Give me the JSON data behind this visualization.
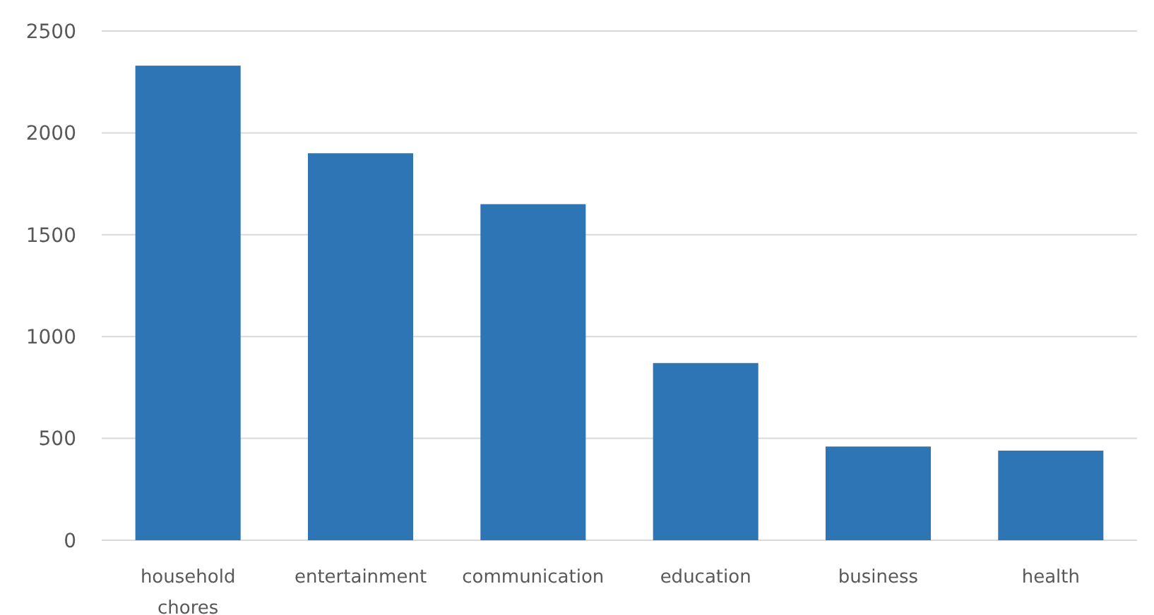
{
  "chart_data": {
    "type": "bar",
    "categories": [
      "household chores",
      "entertainment",
      "communication",
      "education",
      "business",
      "health"
    ],
    "values": [
      2330,
      1900,
      1650,
      870,
      460,
      440
    ],
    "color": "#2e75b6",
    "ylim": [
      0,
      2500
    ],
    "yticks": [
      0,
      500,
      1000,
      1500,
      2000,
      2500
    ],
    "grid": "y"
  }
}
